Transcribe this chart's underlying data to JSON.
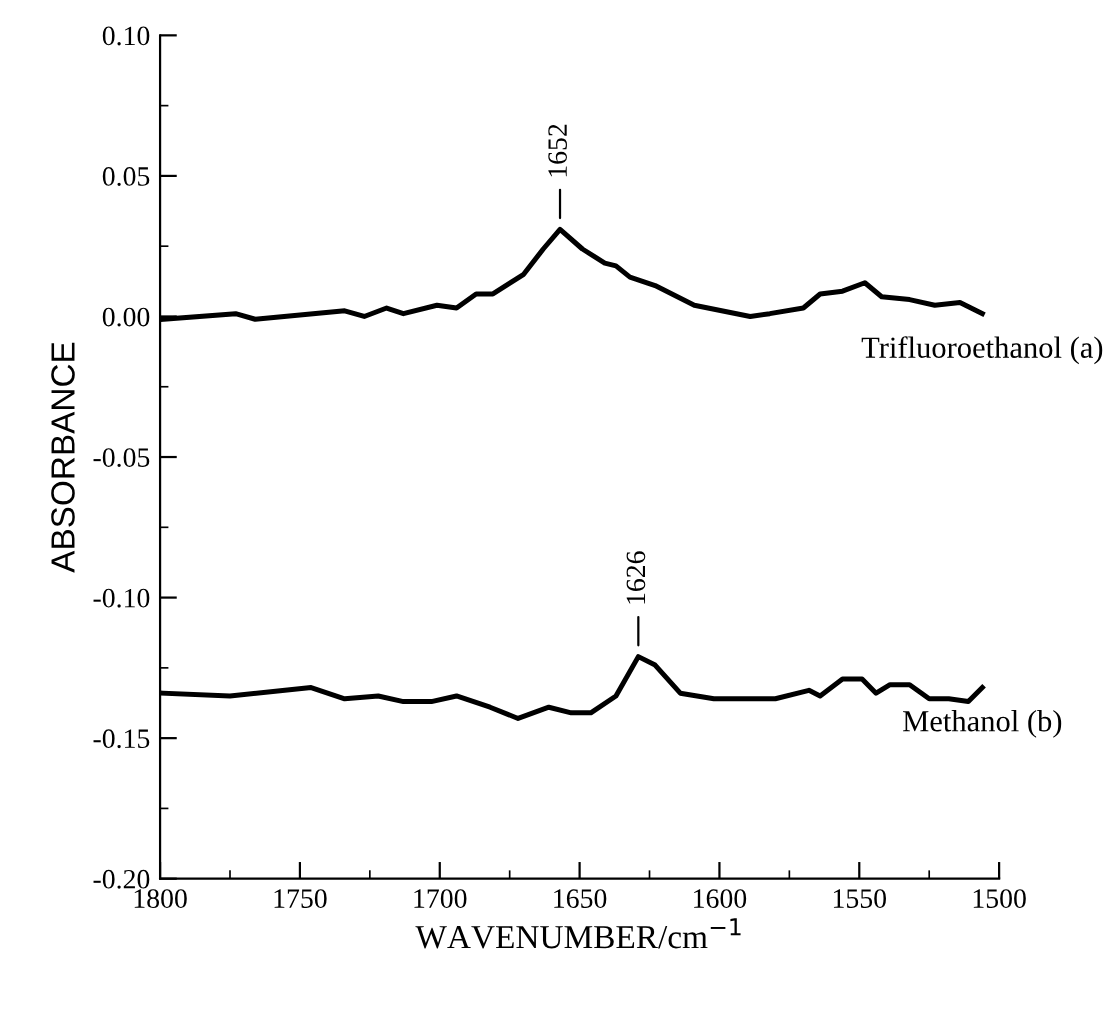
{
  "chart_data": {
    "type": "line",
    "xlabel": "WAVENUMBER/cm$^{−1}$",
    "ylabel": "ABSORBANCE",
    "xlim": [
      1800,
      1500
    ],
    "xticks": [
      1800,
      1750,
      1700,
      1650,
      1600,
      1550,
      1500
    ],
    "ylim": [
      -0.2,
      0.1
    ],
    "yticks": [
      {
        "value": -0.2,
        "label": "-0.20"
      },
      {
        "value": -0.15,
        "label": "-0.15"
      },
      {
        "value": -0.1,
        "label": "-0.10"
      },
      {
        "value": -0.05,
        "label": "-0.05"
      },
      {
        "value": 0,
        "label": "0.00"
      },
      {
        "value": 0.05,
        "label": "0.05"
      },
      {
        "value": 0.1,
        "label": "0.10"
      }
    ],
    "grid": false,
    "legend": false,
    "marker": "none",
    "line_style": "solid",
    "series": [
      {
        "name": "Trifluoroethanol (a)",
        "color": "#000000",
        "x": [
          1799,
          1773,
          1766,
          1734,
          1727,
          1719,
          1713,
          1701,
          1694,
          1687,
          1681,
          1670,
          1663,
          1657,
          1649,
          1641,
          1637,
          1632,
          1623,
          1609,
          1589,
          1582,
          1570,
          1564,
          1556,
          1548,
          1542,
          1532,
          1523,
          1514,
          1506
        ],
        "values": [
          -0.001,
          0.001,
          -0.001,
          0.002,
          0.0,
          0.003,
          0.001,
          0.004,
          0.003,
          0.008,
          0.008,
          0.015,
          0.024,
          0.031,
          0.024,
          0.019,
          0.018,
          0.014,
          0.011,
          0.004,
          0.0,
          0.001,
          0.003,
          0.008,
          0.009,
          0.012,
          0.007,
          0.006,
          0.004,
          0.005,
          0.001
        ]
      },
      {
        "name": "Methanol (b)",
        "color": "#000000",
        "x": [
          1799,
          1775,
          1746,
          1734,
          1722,
          1713,
          1703,
          1694,
          1682,
          1672,
          1661,
          1653,
          1646,
          1637,
          1629,
          1623,
          1614,
          1602,
          1580,
          1568,
          1564,
          1556,
          1549,
          1544,
          1539,
          1532,
          1525,
          1518,
          1511,
          1506
        ],
        "values": [
          -0.134,
          -0.135,
          -0.132,
          -0.136,
          -0.135,
          -0.137,
          -0.137,
          -0.135,
          -0.139,
          -0.143,
          -0.139,
          -0.141,
          -0.141,
          -0.135,
          -0.121,
          -0.124,
          -0.134,
          -0.136,
          -0.136,
          -0.133,
          -0.135,
          -0.129,
          -0.129,
          -0.134,
          -0.131,
          -0.131,
          -0.136,
          -0.136,
          -0.137,
          -0.132
        ]
      }
    ],
    "annotations": [
      {
        "text": "1652",
        "x": 1657,
        "y": 0.031
      },
      {
        "text": "1626",
        "x": 1629,
        "y": -0.121
      }
    ]
  }
}
